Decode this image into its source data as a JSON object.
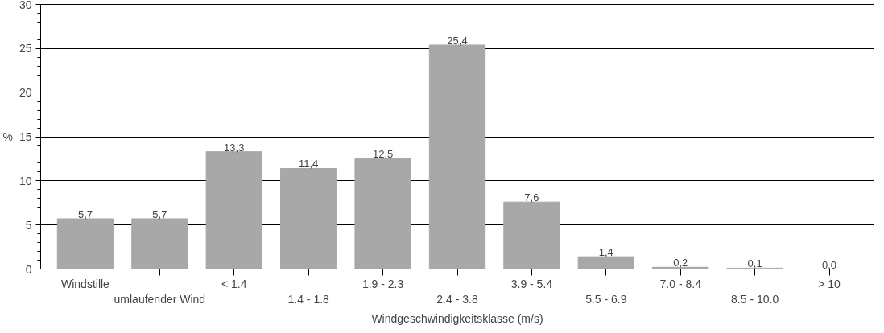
{
  "chart_data": {
    "type": "bar",
    "xlabel": "Windgeschwindigkeitsklasse (m/s)",
    "ylabel": "%",
    "categories": [
      "Windstille",
      "umlaufender Wind",
      "< 1.4",
      "1.4 - 1.8",
      "1.9 - 2.3",
      "2.4 - 3.8",
      "3.9 - 5.4",
      "5.5 - 6.9",
      "7.0 - 8.4",
      "8.5 - 10.0",
      "> 10"
    ],
    "values": [
      5.7,
      5.7,
      13.3,
      11.4,
      12.5,
      25.4,
      7.6,
      1.4,
      0.2,
      0.1,
      0.0
    ],
    "value_labels": [
      "5,7",
      "5,7",
      "13,3",
      "11,4",
      "12,5",
      "25,4",
      "7,6",
      "1,4",
      "0,2",
      "0,1",
      "0,0"
    ],
    "color": "#a8a8a8",
    "ylim": [
      0,
      30
    ],
    "yticks": [
      0,
      5,
      10,
      15,
      20,
      25,
      30
    ],
    "grid": "y"
  }
}
